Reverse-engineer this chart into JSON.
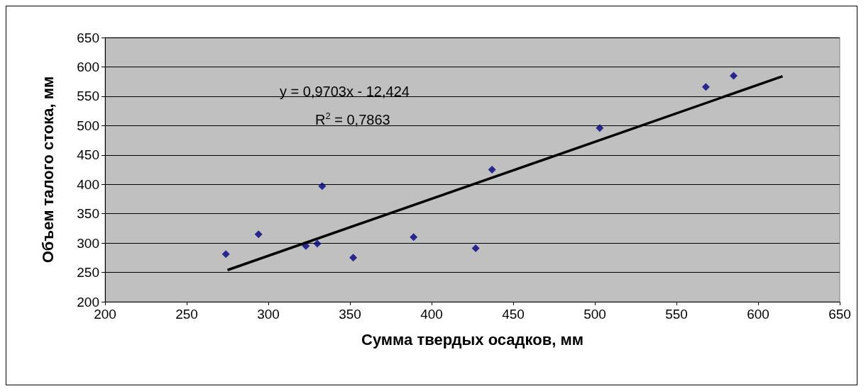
{
  "chart_data": {
    "type": "scatter",
    "xlabel": "Сумма твердых осадков, мм",
    "ylabel": "Объем талого стока, мм",
    "x": [
      274,
      294,
      323,
      330,
      333,
      352,
      389,
      427,
      437,
      503,
      568,
      585
    ],
    "series": [
      {
        "color": "#000080",
        "values": [
          281,
          315,
          295,
          299,
          397,
          275,
          310,
          291,
          425,
          496,
          566,
          585
        ]
      },
      {
        "type": "line",
        "color": "#000000",
        "marker": "none",
        "x": [
          275,
          615
        ],
        "values": [
          254,
          584
        ]
      }
    ],
    "annotations": [
      "y = 0,9703x - 12,424",
      "R$^{2}$ = 0,7863"
    ],
    "xlim": [
      200,
      650
    ],
    "xticks": [
      200,
      250,
      300,
      350,
      400,
      450,
      500,
      550,
      600,
      650
    ],
    "ylim": [
      200,
      650
    ],
    "yticks": [
      200,
      250,
      300,
      350,
      400,
      450,
      500,
      550,
      600,
      650
    ],
    "grid": "y",
    "marker": "diamond"
  }
}
